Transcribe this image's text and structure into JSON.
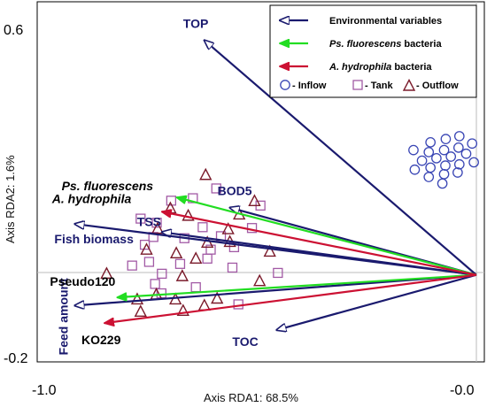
{
  "chart_data": {
    "type": "scatter",
    "subtype": "rda-biplot",
    "xlabel": "Axis RDA1: 68.5%",
    "ylabel": "Axis RDA2: 1.6%",
    "xlim": [
      -1.0,
      0.0
    ],
    "ylim": [
      -0.2,
      0.6
    ],
    "x_ticks": [
      {
        "value": -1.0,
        "label": "-1.0"
      },
      {
        "value": 0.0,
        "label": "-0.0"
      }
    ],
    "y_ticks": [
      {
        "value": 0.6,
        "label": "0.6"
      },
      {
        "value": -0.2,
        "label": "-0.2"
      }
    ],
    "colors": {
      "environmental": "#1a1a6e",
      "ps_fluorescens": "#22dd22",
      "a_hydrophila": "#cc1133",
      "inflow": "#3b47b5",
      "tank": "#a25aa5",
      "outflow": "#7a1a2a",
      "label_blue": "#1a1a6e"
    },
    "legend": {
      "position": "top-right",
      "entries": [
        {
          "kind": "environmental",
          "label": "Environmental variables",
          "italic_part": ""
        },
        {
          "kind": "ps_fluorescens",
          "label": " bacteria",
          "italic_part": "Ps. fluorescens"
        },
        {
          "kind": "a_hydrophila",
          "label": " bacteria",
          "italic_part": "A. hydrophila"
        }
      ],
      "samples": [
        {
          "kind": "inflow",
          "label": "- Inflow"
        },
        {
          "kind": "tank",
          "label": "- Tank"
        },
        {
          "kind": "outflow",
          "label": "- Outflow"
        }
      ]
    },
    "vectors": [
      {
        "name": "TOP",
        "kind": "environmental",
        "x": -0.64,
        "y": 0.575,
        "label_dx": -24,
        "label_dy": -14
      },
      {
        "name": "BOD5",
        "kind": "environmental",
        "x": -0.58,
        "y": 0.165,
        "label_dx": -14,
        "label_dy": -14
      },
      {
        "name": "TSS",
        "kind": "environmental",
        "x": -0.74,
        "y": 0.105,
        "label_dx": -28,
        "label_dy": -7
      },
      {
        "name": "Fish biomass",
        "kind": "environmental",
        "x": -0.945,
        "y": 0.125,
        "label_dx": -23,
        "label_dy": 22
      },
      {
        "name": "Feed amount",
        "kind": "environmental",
        "x": -0.945,
        "y": -0.075,
        "label_dx": -14,
        "label_dy": 14
      },
      {
        "name": "TOC",
        "kind": "environmental",
        "x": -0.47,
        "y": -0.135,
        "label_dx": -50,
        "label_dy": 18
      },
      {
        "name": "Ps. fluorescens",
        "kind": "ps_fluorescens",
        "x": -0.705,
        "y": 0.19,
        "label_dx": -130,
        "label_dy": -8
      },
      {
        "name": "Pseudo120",
        "kind": "ps_fluorescens",
        "x": -0.845,
        "y": -0.055,
        "label_dx": -76,
        "label_dy": -13
      },
      {
        "name": "A. hydrophila",
        "kind": "a_hydrophila",
        "x": -0.74,
        "y": 0.155,
        "label_dx": -124,
        "label_dy": -10
      },
      {
        "name": "KO229",
        "kind": "a_hydrophila",
        "x": -0.875,
        "y": -0.118,
        "label_dx": -26,
        "label_dy": 24
      }
    ],
    "points": {
      "inflow": [
        [
          -0.108,
          0.325
        ],
        [
          -0.072,
          0.333
        ],
        [
          -0.04,
          0.34
        ],
        [
          -0.148,
          0.306
        ],
        [
          -0.112,
          0.301
        ],
        [
          -0.076,
          0.306
        ],
        [
          -0.042,
          0.312
        ],
        [
          -0.01,
          0.322
        ],
        [
          -0.128,
          0.28
        ],
        [
          -0.094,
          0.286
        ],
        [
          -0.06,
          0.29
        ],
        [
          -0.024,
          0.297
        ],
        [
          -0.145,
          0.258
        ],
        [
          -0.108,
          0.263
        ],
        [
          -0.073,
          0.268
        ],
        [
          -0.04,
          0.271
        ],
        [
          -0.006,
          0.276
        ],
        [
          -0.112,
          0.24
        ],
        [
          -0.076,
          0.247
        ],
        [
          -0.044,
          0.251
        ],
        [
          -0.08,
          0.224
        ]
      ],
      "tank": [
        [
          -0.718,
          0.182
        ],
        [
          -0.612,
          0.212
        ],
        [
          -0.667,
          0.188
        ],
        [
          -0.508,
          0.17
        ],
        [
          -0.79,
          0.138
        ],
        [
          -0.752,
          0.128
        ],
        [
          -0.644,
          0.117
        ],
        [
          -0.528,
          0.115
        ],
        [
          -0.76,
          0.093
        ],
        [
          -0.687,
          0.09
        ],
        [
          -0.601,
          0.095
        ],
        [
          -0.78,
          0.074
        ],
        [
          -0.625,
          0.062
        ],
        [
          -0.57,
          0.068
        ],
        [
          -0.77,
          0.032
        ],
        [
          -0.697,
          0.027
        ],
        [
          -0.633,
          0.04
        ],
        [
          -0.574,
          0.018
        ],
        [
          -0.81,
          0.023
        ],
        [
          -0.74,
          0.003
        ],
        [
          -0.467,
          0.005
        ],
        [
          -0.756,
          -0.022
        ],
        [
          -0.66,
          -0.03
        ],
        [
          -0.741,
          -0.045
        ],
        [
          -0.56,
          -0.072
        ]
      ],
      "outflow": [
        [
          -0.637,
          0.245
        ],
        [
          -0.72,
          0.163
        ],
        [
          -0.522,
          0.181
        ],
        [
          -0.558,
          0.148
        ],
        [
          -0.678,
          0.145
        ],
        [
          -0.75,
          0.113
        ],
        [
          -0.584,
          0.112
        ],
        [
          -0.633,
          0.079
        ],
        [
          -0.58,
          0.081
        ],
        [
          -0.776,
          0.062
        ],
        [
          -0.486,
          0.057
        ],
        [
          -0.706,
          0.053
        ],
        [
          -0.66,
          0.04
        ],
        [
          -0.87,
          0.003
        ],
        [
          -0.692,
          -0.003
        ],
        [
          -0.51,
          -0.015
        ],
        [
          -0.753,
          -0.048
        ],
        [
          -0.61,
          -0.058
        ],
        [
          -0.708,
          -0.06
        ],
        [
          -0.79,
          -0.09
        ],
        [
          -0.69,
          -0.088
        ],
        [
          -0.64,
          -0.075
        ],
        [
          -0.798,
          -0.06
        ]
      ]
    }
  }
}
